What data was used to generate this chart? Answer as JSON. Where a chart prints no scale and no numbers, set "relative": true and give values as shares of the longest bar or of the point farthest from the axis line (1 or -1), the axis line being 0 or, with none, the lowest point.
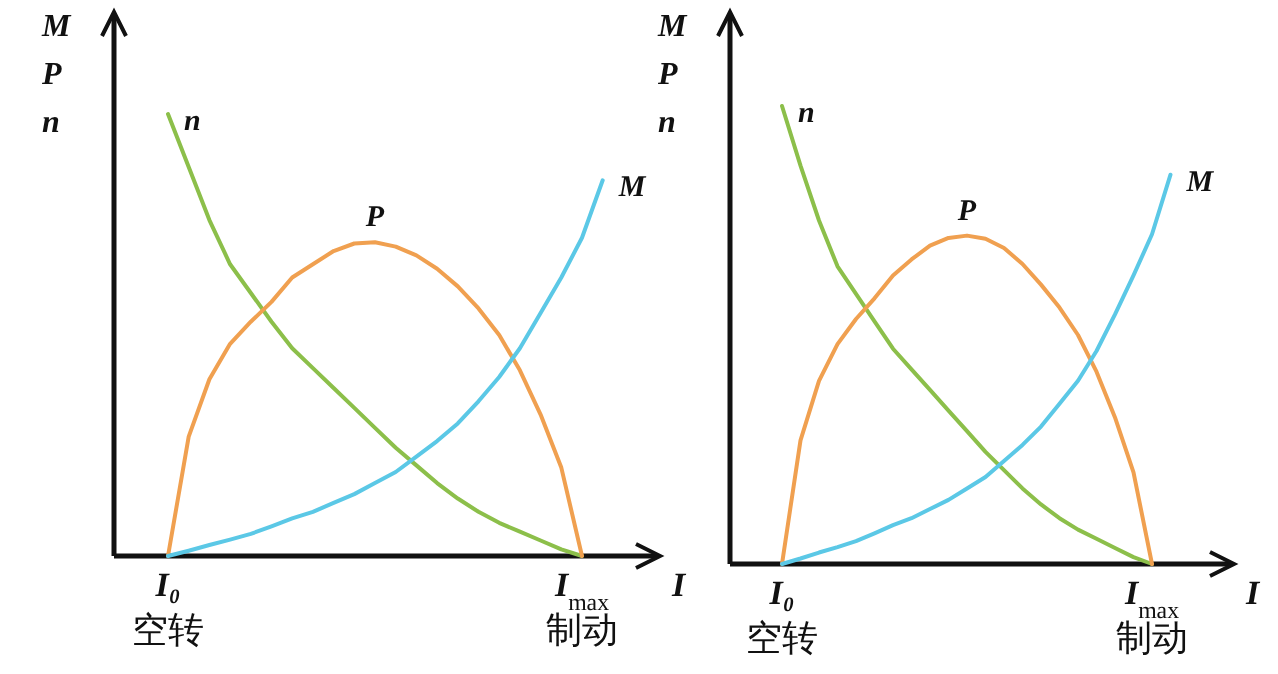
{
  "chart_data": [
    {
      "type": "line",
      "relative": true,
      "xlabel": "I",
      "ylabel": "M\nP\nn",
      "tick_labels": "x",
      "categories": [
        "I₀\n空转",
        null,
        null,
        null,
        null,
        null,
        null,
        null,
        null,
        null,
        null,
        null,
        null,
        null,
        null,
        null,
        null,
        null,
        null,
        null,
        "I$_{max}$\n制动",
        null
      ],
      "series": [
        {
          "name": "n",
          "color": "#8cbf4a",
          "values": [
            1,
            0.88,
            0.76,
            0.66,
            0.595,
            0.53,
            0.47,
            0.425,
            0.38,
            0.335,
            0.29,
            0.245,
            0.205,
            0.165,
            0.13,
            0.1,
            0.075,
            0.055,
            0.035,
            0.015,
            0,
            null
          ]
        },
        {
          "name": "P",
          "color": "#f0a050",
          "values": [
            0,
            0.27,
            0.4,
            0.48,
            0.53,
            0.575,
            0.63,
            0.66,
            0.69,
            0.707,
            0.71,
            0.7,
            0.68,
            0.65,
            0.61,
            0.56,
            0.5,
            0.42,
            0.32,
            0.2,
            0,
            null
          ]
        },
        {
          "name": "M",
          "color": "#5bc8e6",
          "values": [
            0,
            0.012,
            0.025,
            0.037,
            0.05,
            0.067,
            0.085,
            0.1,
            0.12,
            0.14,
            0.165,
            0.19,
            0.225,
            0.26,
            0.3,
            0.35,
            0.405,
            0.47,
            0.55,
            0.63,
            0.72,
            0.85
          ]
        }
      ]
    },
    {
      "type": "line",
      "relative": true,
      "xlabel": "I",
      "ylabel": "M\nP\nn",
      "tick_labels": "x",
      "categories": [
        "I₀\n空转",
        null,
        null,
        null,
        null,
        null,
        null,
        null,
        null,
        null,
        null,
        null,
        null,
        null,
        null,
        null,
        null,
        null,
        null,
        null,
        "I$_{max}$\n制动",
        null
      ],
      "series": [
        {
          "name": "n",
          "color": "#8cbf4a",
          "values": [
            1,
            0.87,
            0.75,
            0.65,
            0.59,
            0.53,
            0.47,
            0.425,
            0.38,
            0.335,
            0.29,
            0.245,
            0.205,
            0.165,
            0.13,
            0.1,
            0.075,
            0.055,
            0.035,
            0.015,
            0,
            null
          ]
        },
        {
          "name": "P",
          "color": "#f0a050",
          "values": [
            0,
            0.27,
            0.4,
            0.48,
            0.535,
            0.58,
            0.63,
            0.665,
            0.695,
            0.712,
            0.717,
            0.71,
            0.69,
            0.655,
            0.61,
            0.56,
            0.5,
            0.42,
            0.32,
            0.2,
            0,
            null
          ]
        },
        {
          "name": "M",
          "color": "#5bc8e6",
          "values": [
            0,
            0.012,
            0.025,
            0.037,
            0.05,
            0.067,
            0.085,
            0.1,
            0.12,
            0.14,
            0.165,
            0.19,
            0.225,
            0.26,
            0.3,
            0.35,
            0.4,
            0.465,
            0.545,
            0.63,
            0.72,
            0.85
          ]
        }
      ]
    }
  ]
}
